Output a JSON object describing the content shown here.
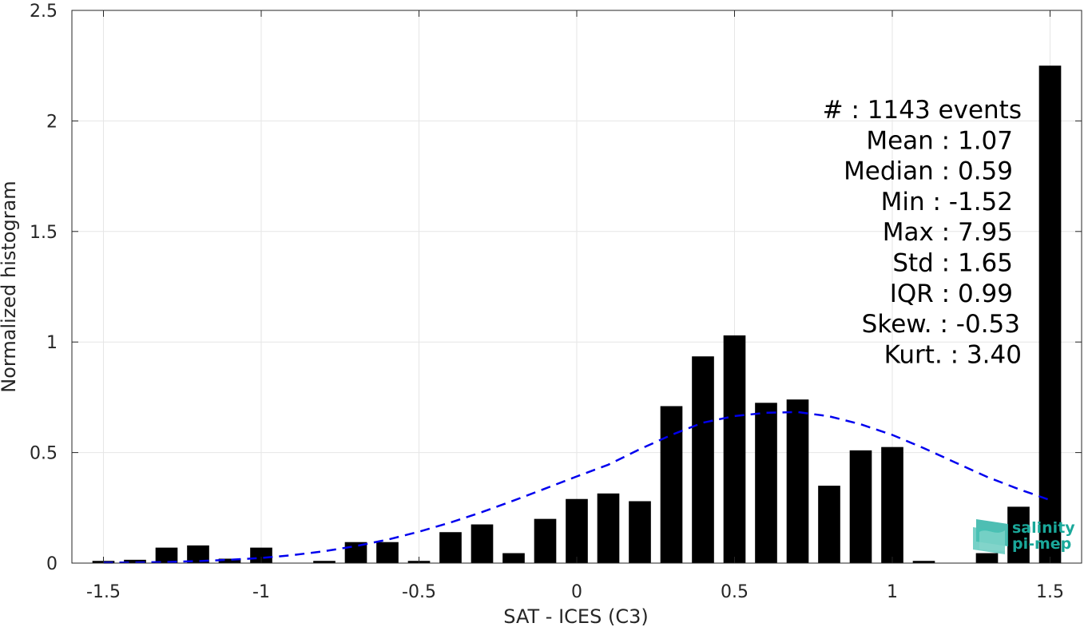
{
  "chart_data": {
    "type": "bar",
    "title": "",
    "xlabel": "SAT - ICES (C3)",
    "ylabel": "Normalized histogram",
    "xlim": [
      -1.6,
      1.6
    ],
    "ylim": [
      0,
      2.5
    ],
    "xticks": [
      -1.5,
      -1,
      -0.5,
      0,
      0.5,
      1,
      1.5
    ],
    "xtick_labels": [
      "-1.5",
      "-1",
      "-0.5",
      "0",
      "0.5",
      "1",
      "1.5"
    ],
    "yticks": [
      0,
      0.5,
      1,
      1.5,
      2,
      2.5
    ],
    "ytick_labels": [
      "0",
      "0.5",
      "1",
      "1.5",
      "2",
      "2.5"
    ],
    "grid": true,
    "bar_width": 0.07,
    "bar_color": "#000000",
    "bars": {
      "x": [
        -1.5,
        -1.4,
        -1.3,
        -1.2,
        -1.1,
        -1.0,
        -0.9,
        -0.8,
        -0.7,
        -0.6,
        -0.5,
        -0.4,
        -0.3,
        -0.2,
        -0.1,
        0.0,
        0.1,
        0.2,
        0.3,
        0.4,
        0.5,
        0.6,
        0.7,
        0.8,
        0.9,
        1.0,
        1.1,
        1.2,
        1.3,
        1.4,
        1.5
      ],
      "values": [
        0.01,
        0.015,
        0.07,
        0.08,
        0.02,
        0.07,
        0.0,
        0.01,
        0.095,
        0.095,
        0.01,
        0.14,
        0.175,
        0.045,
        0.2,
        0.29,
        0.315,
        0.28,
        0.71,
        0.935,
        1.03,
        0.725,
        0.74,
        0.35,
        0.51,
        0.525,
        0.01,
        0.0,
        0.045,
        0.255,
        2.25
      ]
    },
    "fit_curve": {
      "style": "dashed",
      "color": "#0000ee",
      "x": [
        -1.5,
        -1.4,
        -1.3,
        -1.2,
        -1.1,
        -1.0,
        -0.9,
        -0.8,
        -0.7,
        -0.6,
        -0.5,
        -0.4,
        -0.3,
        -0.2,
        -0.1,
        0.0,
        0.1,
        0.2,
        0.3,
        0.4,
        0.5,
        0.6,
        0.7,
        0.8,
        0.9,
        1.0,
        1.1,
        1.2,
        1.3,
        1.4,
        1.5
      ],
      "y": [
        0.002,
        0.003,
        0.005,
        0.009,
        0.015,
        0.023,
        0.036,
        0.054,
        0.077,
        0.106,
        0.142,
        0.184,
        0.231,
        0.283,
        0.337,
        0.392,
        0.445,
        0.515,
        0.58,
        0.635,
        0.665,
        0.68,
        0.683,
        0.664,
        0.628,
        0.58,
        0.52,
        0.455,
        0.39,
        0.335,
        0.285
      ]
    },
    "stats": [
      "#  : 1143 events",
      "Mean : 1.07",
      "Median : 0.59",
      "Min : -1.52",
      "Max : 7.95",
      "Std : 1.65",
      "IQR : 0.99",
      "Skew. : -0.53",
      "Kurt. : 3.40"
    ]
  },
  "logo": {
    "line1": "salinity",
    "line2": "pi-mep",
    "color": "#1aa89a"
  }
}
